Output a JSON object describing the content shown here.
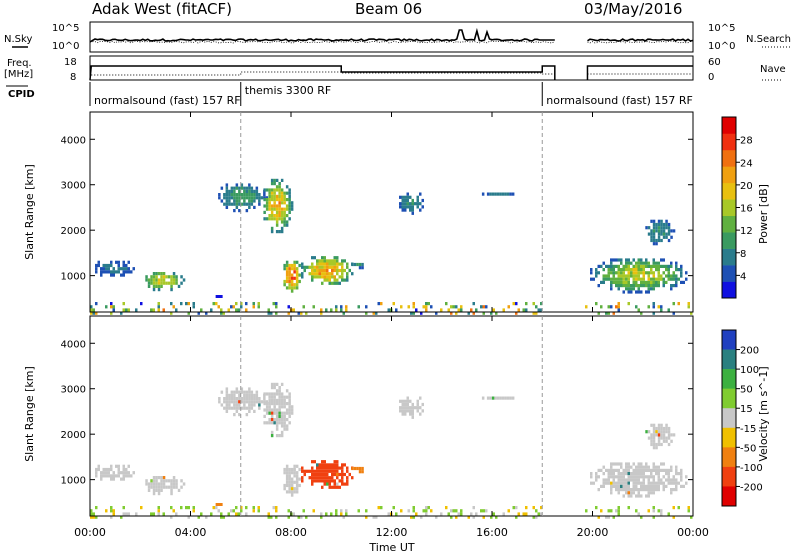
{
  "header": {
    "station": "Adak West (fitACF)",
    "beam": "Beam 06",
    "date": "03/May/2016"
  },
  "top_panel": {
    "nsky_label": "N.Sky",
    "nsearch_label": "N.Search",
    "tick_top": "10^5",
    "tick_bottom": "10^0",
    "freq_label_1": "Freq.",
    "freq_label_2": "[MHz]",
    "freq_ticks": [
      "18",
      "8"
    ],
    "nave_label": "Nave",
    "nave_ticks": [
      "60",
      "0"
    ],
    "cpid_label": "CPID",
    "cpid_segments": [
      {
        "text": "normalsound (fast) 157 RF",
        "start_h": 0,
        "end_h": 6.0
      },
      {
        "text": "themis 3300 RF",
        "start_h": 6.0,
        "end_h": 18.0
      },
      {
        "text": "normalsound (fast) 157 RF",
        "start_h": 18.0,
        "end_h": 24
      }
    ],
    "data_gap_h": [
      18.5,
      19.8
    ]
  },
  "x_axis": {
    "label": "Time UT",
    "ticks": [
      "00:00",
      "04:00",
      "08:00",
      "12:00",
      "16:00",
      "20:00",
      "00:00"
    ],
    "tick_hours": [
      0,
      4,
      8,
      12,
      16,
      20,
      24
    ],
    "range_h": [
      0,
      24
    ]
  },
  "chart_data": [
    {
      "type": "heatmap",
      "name": "power",
      "ylabel": "Slant Range [km]",
      "yticks": [
        "1000",
        "2000",
        "3000",
        "4000"
      ],
      "ylim": [
        200,
        4600
      ],
      "colorbar_label": "Power [dB]",
      "colorbar_ticks": [
        "4",
        "8",
        "12",
        "16",
        "20",
        "24",
        "28"
      ],
      "colorbar_range": [
        0,
        32
      ],
      "colors": [
        "#1010e0",
        "#1e50b4",
        "#2a7c8c",
        "#3a9a60",
        "#60b040",
        "#a8c828",
        "#e8c010",
        "#f0a010",
        "#f07010",
        "#f03010",
        "#e00000"
      ],
      "regions": [
        {
          "t0": 2.0,
          "t1": 3.7,
          "r0": 700,
          "r1": 1150,
          "pmin": 6,
          "pmax": 20
        },
        {
          "t0": 5.0,
          "t1": 7.0,
          "r0": 2450,
          "r1": 3100,
          "pmin": 4,
          "pmax": 12
        },
        {
          "t0": 6.8,
          "t1": 8.0,
          "r0": 1950,
          "r1": 3200,
          "pmin": 6,
          "pmax": 24
        },
        {
          "t0": 7.6,
          "t1": 8.4,
          "r0": 650,
          "r1": 1400,
          "pmin": 8,
          "pmax": 30
        },
        {
          "t0": 8.3,
          "t1": 10.5,
          "r0": 800,
          "r1": 1500,
          "pmin": 6,
          "pmax": 26
        },
        {
          "t0": 10.3,
          "t1": 11.0,
          "r0": 1200,
          "r1": 1350,
          "pmin": 4,
          "pmax": 10
        },
        {
          "t0": 0.1,
          "t1": 1.7,
          "r0": 1000,
          "r1": 1400,
          "pmin": 3,
          "pmax": 8
        },
        {
          "t0": 12.2,
          "t1": 13.3,
          "r0": 2400,
          "r1": 2900,
          "pmin": 4,
          "pmax": 10
        },
        {
          "t0": 15.5,
          "t1": 17.0,
          "r0": 2800,
          "r1": 2900,
          "pmin": 4,
          "pmax": 8
        },
        {
          "t0": 19.8,
          "t1": 23.8,
          "r0": 650,
          "r1": 1450,
          "pmin": 4,
          "pmax": 20
        },
        {
          "t0": 22.0,
          "t1": 23.2,
          "r0": 1700,
          "r1": 2300,
          "pmin": 4,
          "pmax": 10
        },
        {
          "t0": 0.0,
          "t1": 18.0,
          "r0": 200,
          "r1": 420,
          "pmin": 2,
          "pmax": 24
        },
        {
          "t0": 19.6,
          "t1": 24.0,
          "r0": 200,
          "r1": 420,
          "pmin": 2,
          "pmax": 24
        }
      ]
    },
    {
      "type": "heatmap",
      "name": "velocity",
      "ylabel": "Slant Range [km]",
      "yticks": [
        "1000",
        "2000",
        "3000",
        "4000"
      ],
      "ylim": [
        200,
        4600
      ],
      "colorbar_label": "Velocity [m s^-1]",
      "colorbar_ticks": [
        "200",
        "100",
        "50",
        "15",
        "-15",
        "-50",
        "-100",
        "-200"
      ],
      "colors": [
        "#2040c0",
        "#2a8080",
        "#3cb040",
        "#80cc30",
        "#c8c8c8",
        "#f0c000",
        "#f08010",
        "#f04010",
        "#e00000"
      ],
      "regions": [
        {
          "t0": 2.0,
          "t1": 3.7,
          "r0": 700,
          "r1": 1150,
          "v": 0
        },
        {
          "t0": 5.0,
          "t1": 7.0,
          "r0": 2450,
          "r1": 3100,
          "v": 0
        },
        {
          "t0": 6.8,
          "t1": 8.0,
          "r0": 1950,
          "r1": 3200,
          "v": 0
        },
        {
          "t0": 7.6,
          "t1": 8.4,
          "r0": 650,
          "r1": 1400,
          "v": 0
        },
        {
          "t0": 8.3,
          "t1": 10.5,
          "r0": 800,
          "r1": 1500,
          "v": -80
        },
        {
          "t0": 10.3,
          "t1": 11.0,
          "r0": 1200,
          "r1": 1350,
          "v": -60
        },
        {
          "t0": 0.1,
          "t1": 1.7,
          "r0": 1000,
          "r1": 1400,
          "v": 0
        },
        {
          "t0": 12.2,
          "t1": 13.3,
          "r0": 2400,
          "r1": 2900,
          "v": 0
        },
        {
          "t0": 15.5,
          "t1": 17.0,
          "r0": 2800,
          "r1": 2900,
          "v": 0
        },
        {
          "t0": 19.8,
          "t1": 23.8,
          "r0": 650,
          "r1": 1450,
          "v": 0
        },
        {
          "t0": 22.0,
          "t1": 23.2,
          "r0": 1700,
          "r1": 2300,
          "v": 0
        },
        {
          "t0": 0.0,
          "t1": 18.0,
          "r0": 200,
          "r1": 420,
          "v": 30
        },
        {
          "t0": 19.6,
          "t1": 24.0,
          "r0": 200,
          "r1": 420,
          "v": 30
        }
      ]
    }
  ]
}
